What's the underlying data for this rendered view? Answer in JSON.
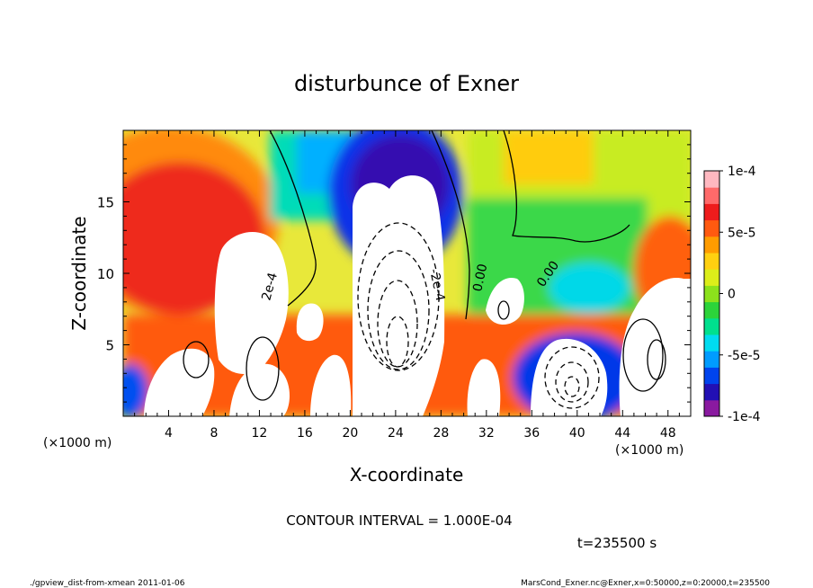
{
  "chart_data": {
    "type": "heatmap",
    "title": "disturbunce of Exner",
    "xlabel": "X-coordinate",
    "ylabel": "Z-coordinate",
    "x_unit": "(×1000 m)",
    "z_unit": "(×1000 m)",
    "xlim": [
      0,
      50
    ],
    "ylim": [
      0,
      20
    ],
    "x_ticks": [
      "4",
      "8",
      "12",
      "16",
      "20",
      "24",
      "28",
      "32",
      "36",
      "40",
      "44",
      "48"
    ],
    "y_ticks": [
      "5",
      "10",
      "15"
    ],
    "colorbar": {
      "range": [
        -0.0001,
        0.0001
      ],
      "tick_labels": [
        "1e-4",
        "5e-5",
        "0",
        "-5e-5",
        "-1e-4"
      ],
      "colors": [
        "#8a1aa0",
        "#2210b4",
        "#0044ee",
        "#009cff",
        "#00dcf0",
        "#00e08e",
        "#2cd43a",
        "#8ce21c",
        "#dcee1a",
        "#ffd010",
        "#ff9c00",
        "#ff5a10",
        "#ee1c1c",
        "#ff6a6a",
        "#ffb8c0"
      ]
    },
    "contour_labels": [
      "2e-4",
      "-2e-4",
      "0.00",
      "0.00"
    ],
    "contour_interval_text": "CONTOUR INTERVAL = 1.000E-04",
    "time_text": "t=235500 s",
    "footer_left": "./gpview_dist-from-xmean  2011-01-06",
    "footer_right": "MarsCond_Exner.nc@Exner,x=0:50000,z=0:20000,t=235500"
  }
}
